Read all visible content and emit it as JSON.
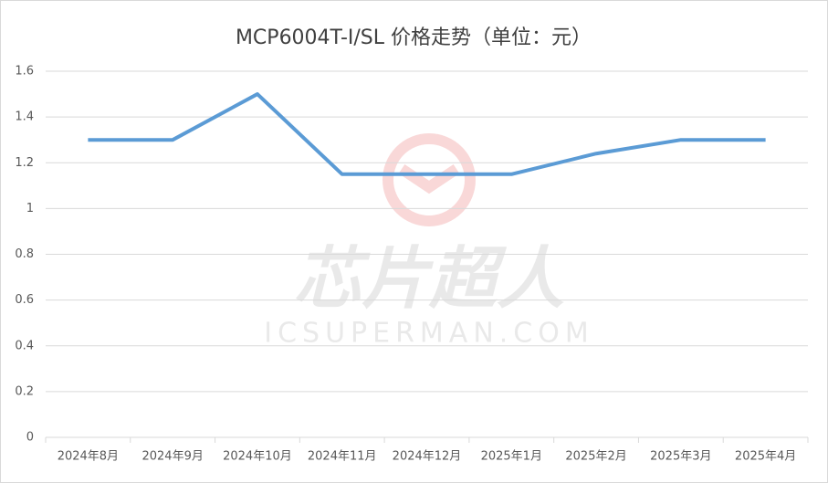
{
  "chart_data": {
    "type": "line",
    "title": "MCP6004T-I/SL 价格走势（单位：元）",
    "categories": [
      "2024年8月",
      "2024年9月",
      "2024年10月",
      "2024年11月",
      "2024年12月",
      "2025年1月",
      "2025年2月",
      "2025年3月",
      "2025年4月"
    ],
    "values": [
      1.3,
      1.3,
      1.5,
      1.15,
      1.15,
      1.15,
      1.24,
      1.3,
      1.3
    ],
    "color": "#5b9bd5",
    "ylim": [
      0,
      1.6
    ],
    "yticks": [
      0,
      0.2,
      0.4,
      0.6,
      0.8,
      1,
      1.2,
      1.4,
      1.6
    ],
    "grid": true,
    "watermark": {
      "brand": "芯片超人",
      "site": "ICSUPERMAN.COM"
    }
  }
}
